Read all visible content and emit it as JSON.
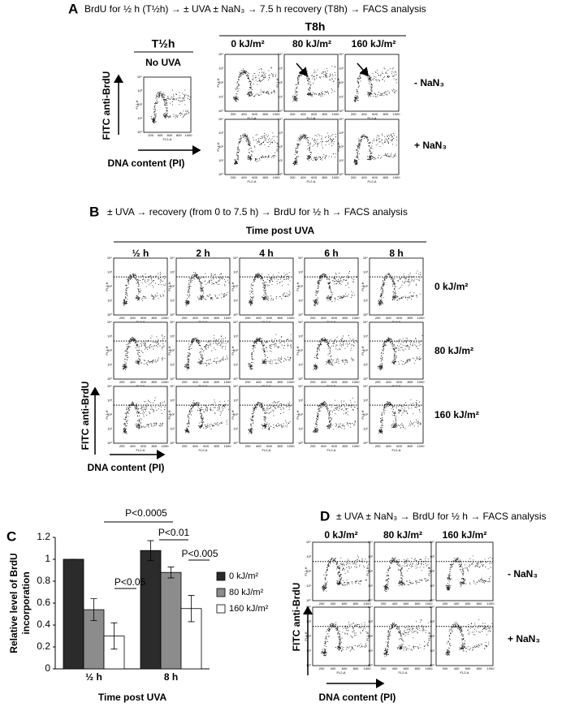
{
  "facs_axes": {
    "x_label": "FL2-A",
    "y_label": "FL1-H",
    "x_ticks": [
      "200",
      "400",
      "600",
      "800",
      "1000"
    ],
    "y_ticks": [
      "10⁰",
      "10¹",
      "10²",
      "10³",
      "10⁴"
    ]
  },
  "panel_a": {
    "letter": "A",
    "title": "BrdU for ½ h (T½h) → ± UVA ± NaN₃ → 7.5 h recovery (T8h) → FACS analysis",
    "left_header": "T½h",
    "left_column": "No UVA",
    "right_header": "T8h",
    "columns": [
      "0 kJ/m²",
      "80 kJ/m²",
      "160 kJ/m²"
    ],
    "rows": [
      "- NaN₃",
      "+ NaN₃"
    ],
    "y_axis": "FITC anti-BrdU",
    "x_axis": "DNA content (PI)"
  },
  "panel_b": {
    "letter": "B",
    "title": "± UVA → recovery (from 0 to 7.5 h) → BrdU for ½ h → FACS analysis",
    "header": "Time post UVA",
    "columns": [
      "½ h",
      "2 h",
      "4 h",
      "6 h",
      "8 h"
    ],
    "rows": [
      "0 kJ/m²",
      "80 kJ/m²",
      "160 kJ/m²"
    ],
    "y_axis": "FITC anti-BrdU",
    "x_axis": "DNA content (PI)"
  },
  "panel_c": {
    "letter": "C"
  },
  "chart_data": {
    "type": "bar",
    "y_label": [
      "Relative level of BrdU",
      "incorporation"
    ],
    "x_label": "Time post UVA",
    "categories": [
      "½ h",
      "8 h"
    ],
    "series": [
      {
        "name": "0 kJ/m²",
        "color": "#2b2b2b",
        "values": [
          1,
          1.08
        ],
        "errors": [
          0,
          0.09
        ]
      },
      {
        "name": "80 kJ/m²",
        "color": "#8c8c8c",
        "values": [
          0.54,
          0.88
        ],
        "errors": [
          0.1,
          0.05
        ]
      },
      {
        "name": "160 kJ/m²",
        "color": "#ffffff",
        "values": [
          0.3,
          0.55
        ],
        "errors": [
          0.12,
          0.12
        ]
      }
    ],
    "ylim": [
      0,
      1.2
    ],
    "yticks": [
      0,
      0.2,
      0.4,
      0.6,
      0.8,
      1,
      1.2
    ],
    "annotations": [
      "P<0.0005",
      "P<0.01",
      "P<0.005",
      "P<0.05"
    ]
  },
  "panel_d": {
    "letter": "D",
    "title": "± UVA ± NaN₃ → BrdU for ½ h → FACS analysis",
    "columns": [
      "0 kJ/m²",
      "80 kJ/m²",
      "160 kJ/m²"
    ],
    "rows": [
      "- NaN₃",
      "+ NaN₃"
    ],
    "y_axis": "FITC anti-BrdU",
    "x_axis": "DNA content (PI)"
  }
}
